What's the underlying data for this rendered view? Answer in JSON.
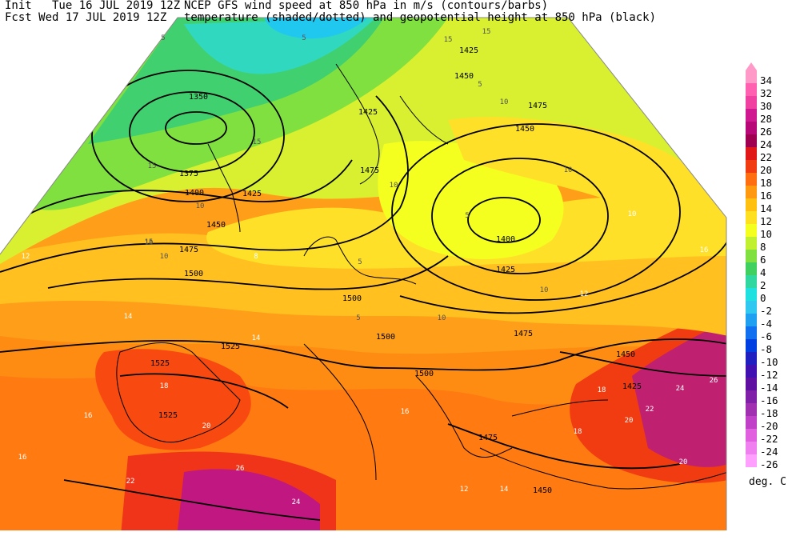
{
  "header": {
    "init_line": "Init   Tue 16 JUL 2019 12Z",
    "fcst_line": "Fcst Wed 17 JUL 2019 12Z",
    "title_line1": "NCEP GFS wind speed at 850 hPa in m/s (contours/barbs)",
    "title_line2": "temperature (shaded/dotted) and geopotential height at 850 hPa (black)"
  },
  "colorbar": {
    "units": "deg. C",
    "levels": [
      "34",
      "32",
      "30",
      "28",
      "26",
      "24",
      "22",
      "20",
      "18",
      "16",
      "14",
      "12",
      "10",
      "8",
      "6",
      "4",
      "2",
      "0",
      "-2",
      "-4",
      "-6",
      "-8",
      "-10",
      "-12",
      "-14",
      "-16",
      "-18",
      "-20",
      "-22",
      "-24",
      "-26"
    ],
    "colors": [
      "#ff99c8",
      "#ff60b0",
      "#f040a0",
      "#d01890",
      "#b80878",
      "#a00050",
      "#e01818",
      "#f03c10",
      "#ff6e10",
      "#ff9a10",
      "#ffc010",
      "#ffe020",
      "#f4ff20",
      "#c0f030",
      "#80e040",
      "#40d060",
      "#30d8a0",
      "#20e0e0",
      "#30c8f0",
      "#20a0f0",
      "#1070f0",
      "#0040e0",
      "#2020c0",
      "#4010b0",
      "#6010a0",
      "#8020a8",
      "#a030b0",
      "#c040c8",
      "#e060e0",
      "#f080f0",
      "#ffa0ff"
    ]
  },
  "map": {
    "height_labels": [
      "1350",
      "1375",
      "1400",
      "1425",
      "1450",
      "1475",
      "1500",
      "1525",
      "1425",
      "1450",
      "1475",
      "1425",
      "1400",
      "1425",
      "1450",
      "1475",
      "1500",
      "1500",
      "1525",
      "1475",
      "1450",
      "1425",
      "1475",
      "1450",
      "1525",
      "1500"
    ],
    "wind_labels": [
      "15",
      "15",
      "15",
      "10",
      "5",
      "10",
      "5",
      "10",
      "15",
      "10",
      "5",
      "10",
      "15",
      "10",
      "5",
      "5",
      "10",
      "10",
      "5"
    ],
    "temp_labels": [
      "12",
      "14",
      "16",
      "18",
      "20",
      "22",
      "24",
      "26",
      "16",
      "14",
      "12",
      "10",
      "8",
      "16",
      "18",
      "20",
      "22",
      "24",
      "26",
      "14",
      "12",
      "18",
      "16",
      "20"
    ]
  }
}
